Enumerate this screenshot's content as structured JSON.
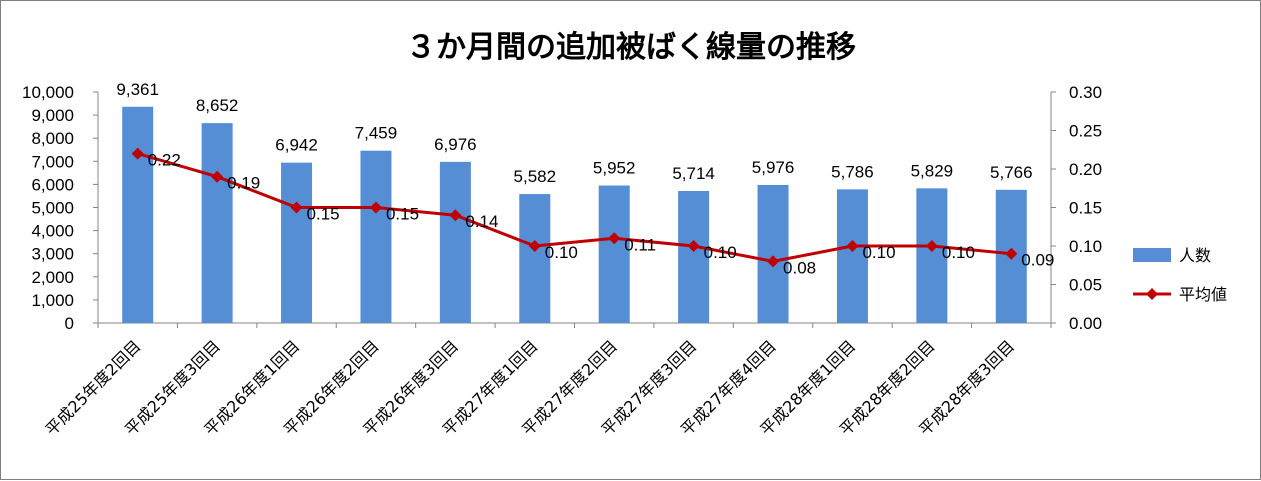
{
  "chart_data": {
    "type": "bar",
    "title": "３か月間の追加被ばく線量の推移",
    "categories": [
      "平成25年度2回目",
      "平成25年度3回目",
      "平成26年度1回目",
      "平成26年度2回目",
      "平成26年度3回目",
      "平成27年度1回目",
      "平成27年度2回目",
      "平成27年度3回目",
      "平成27年度4回目",
      "平成28年度1回目",
      "平成28年度2回目",
      "平成28年度3回目"
    ],
    "series": [
      {
        "name": "人数",
        "type": "bar",
        "axis": "left",
        "color": "#558ed5",
        "values": [
          9361,
          8652,
          6942,
          7459,
          6976,
          5582,
          5952,
          5714,
          5976,
          5786,
          5829,
          5766
        ],
        "labels": [
          "9,361",
          "8,652",
          "6,942",
          "7,459",
          "6,976",
          "5,582",
          "5,952",
          "5,714",
          "5,976",
          "5,786",
          "5,829",
          "5,766"
        ]
      },
      {
        "name": "平均値",
        "type": "line",
        "axis": "right",
        "color": "#c00000",
        "values": [
          0.22,
          0.19,
          0.15,
          0.15,
          0.14,
          0.1,
          0.11,
          0.1,
          0.08,
          0.1,
          0.1,
          0.09
        ],
        "labels": [
          "0.22",
          "0.19",
          "0.15",
          "0.15",
          "0.14",
          "0.10",
          "0.11",
          "0.10",
          "0.08",
          "0.10",
          "0.10",
          "0.09"
        ]
      }
    ],
    "left_axis": {
      "ylim": [
        0,
        10000
      ],
      "ticks": [
        0,
        1000,
        2000,
        3000,
        4000,
        5000,
        6000,
        7000,
        8000,
        9000,
        10000
      ],
      "tick_labels": [
        "0",
        "1,000",
        "2,000",
        "3,000",
        "4,000",
        "5,000",
        "6,000",
        "7,000",
        "8,000",
        "9,000",
        "10,000"
      ]
    },
    "right_axis": {
      "ylim": [
        0,
        0.3
      ],
      "ticks": [
        0,
        0.05,
        0.1,
        0.15,
        0.2,
        0.25,
        0.3
      ],
      "tick_labels": [
        "0.00",
        "0.05",
        "0.10",
        "0.15",
        "0.20",
        "0.25",
        "0.30"
      ]
    },
    "grid": false,
    "legend_position": "right"
  }
}
